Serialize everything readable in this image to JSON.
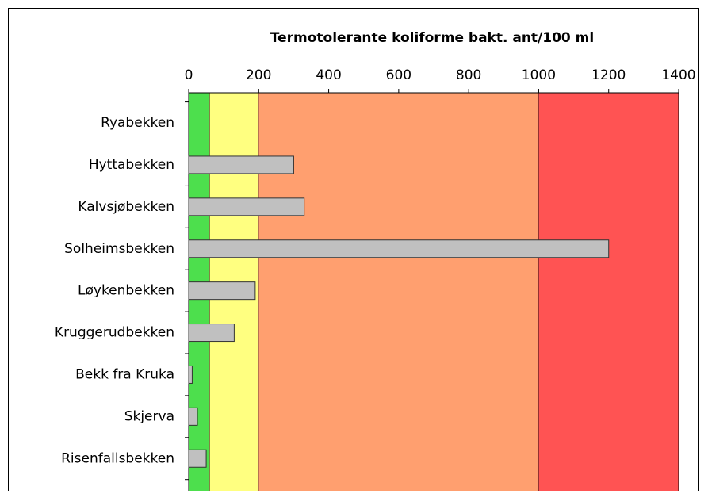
{
  "chart_data": {
    "type": "bar",
    "orientation": "horizontal",
    "title": "Termotolerante koliforme bakt. ant/100 ml",
    "categories": [
      "Ryabekken",
      "Hyttabekken",
      "Kalvsjøbekken",
      "Solheimsbekken",
      "Løykenbekken",
      "Kruggerudbekken",
      "Bekk fra Kruka",
      "Skjerva",
      "Risenfallsbekken"
    ],
    "values": [
      0,
      300,
      330,
      1200,
      190,
      130,
      10,
      25,
      50
    ],
    "color": "#c0c0c0",
    "xlim": [
      0,
      1400
    ],
    "xticks": [
      0,
      200,
      400,
      600,
      800,
      1000,
      1200,
      1400
    ],
    "bands": [
      {
        "from": 0,
        "to": 60,
        "color": "#4ddf4d"
      },
      {
        "from": 60,
        "to": 200,
        "color": "#ffff80"
      },
      {
        "from": 200,
        "to": 1000,
        "color": "#ff9f6f"
      },
      {
        "from": 1000,
        "to": 1400,
        "color": "#ff5353"
      }
    ]
  }
}
